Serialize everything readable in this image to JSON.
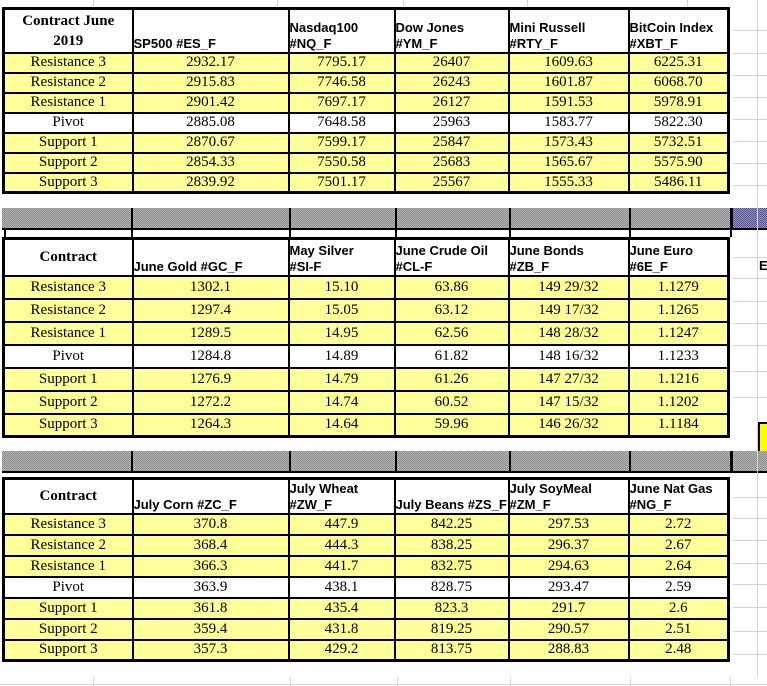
{
  "colors": {
    "cell_yellow": "#FFFF99",
    "pivot_row_white": "#FFFFFF",
    "border_black": "#000000",
    "separator_gray_dark": "#8a8a8a",
    "separator_gray_light": "#b6b6b6",
    "separator_purple_dark": "#55558f",
    "separator_purple_light": "#9191c2",
    "highlight_yellow": "#FFFF00",
    "gridline_gray": "#d6d6d6"
  },
  "edge_partial_text": "E",
  "sections": [
    {
      "corner": "Contract June\n2019",
      "columns": [
        "SP500 #ES_F",
        "Nasdaq100\n#NQ_F",
        "Dow Jones\n#YM_F",
        "Mini Russell\n#RTY_F",
        "BitCoin Index\n#XBT_F"
      ],
      "rows": [
        {
          "label": "Resistance 3",
          "values": [
            "2932.17",
            "7795.17",
            "26407",
            "1609.63",
            "6225.31"
          ]
        },
        {
          "label": "Resistance 2",
          "values": [
            "2915.83",
            "7746.58",
            "26243",
            "1601.87",
            "6068.70"
          ]
        },
        {
          "label": "Resistance 1",
          "values": [
            "2901.42",
            "7697.17",
            "26127",
            "1591.53",
            "5978.91"
          ]
        },
        {
          "label": "Pivot",
          "values": [
            "2885.08",
            "7648.58",
            "25963",
            "1583.77",
            "5822.30"
          ]
        },
        {
          "label": "Support 1",
          "values": [
            "2870.67",
            "7599.17",
            "25847",
            "1573.43",
            "5732.51"
          ]
        },
        {
          "label": "Support 2",
          "values": [
            "2854.33",
            "7550.58",
            "25683",
            "1565.67",
            "5575.90"
          ]
        },
        {
          "label": "Support 3",
          "values": [
            "2839.92",
            "7501.17",
            "25567",
            "1555.33",
            "5486.11"
          ]
        }
      ]
    },
    {
      "corner": "Contract",
      "columns": [
        "June Gold #GC_F",
        "May Silver\n#SI-F",
        "June Crude Oil\n#CL-F",
        "June Bonds\n#ZB_F",
        "June Euro #6E_F"
      ],
      "rows": [
        {
          "label": "Resistance 3",
          "values": [
            "1302.1",
            "15.10",
            "63.86",
            "149 29/32",
            "1.1279"
          ]
        },
        {
          "label": "Resistance 2",
          "values": [
            "1297.4",
            "15.05",
            "63.12",
            "149 17/32",
            "1.1265"
          ]
        },
        {
          "label": "Resistance 1",
          "values": [
            "1289.5",
            "14.95",
            "62.56",
            "148 28/32",
            "1.1247"
          ]
        },
        {
          "label": "Pivot",
          "values": [
            "1284.8",
            "14.89",
            "61.82",
            "148 16/32",
            "1.1233"
          ]
        },
        {
          "label": "Support 1",
          "values": [
            "1276.9",
            "14.79",
            "61.26",
            "147 27/32",
            "1.1216"
          ]
        },
        {
          "label": "Support 2",
          "values": [
            "1272.2",
            "14.74",
            "60.52",
            "147 15/32",
            "1.1202"
          ]
        },
        {
          "label": "Support 3",
          "values": [
            "1264.3",
            "14.64",
            "59.96",
            "146 26/32",
            "1.1184"
          ]
        }
      ]
    },
    {
      "corner": "Contract",
      "columns": [
        "July  Corn #ZC_F",
        "July Wheat\n#ZW_F",
        "July Beans #ZS_F",
        "July SoyMeal\n#ZM_F",
        "June Nat Gas\n#NG_F"
      ],
      "rows": [
        {
          "label": "Resistance 3",
          "values": [
            "370.8",
            "447.9",
            "842.25",
            "297.53",
            "2.72"
          ]
        },
        {
          "label": "Resistance 2",
          "values": [
            "368.4",
            "444.3",
            "838.25",
            "296.37",
            "2.67"
          ]
        },
        {
          "label": "Resistance 1",
          "values": [
            "366.3",
            "441.7",
            "832.75",
            "294.63",
            "2.64"
          ]
        },
        {
          "label": "Pivot",
          "values": [
            "363.9",
            "438.1",
            "828.75",
            "293.47",
            "2.59"
          ]
        },
        {
          "label": "Support 1",
          "values": [
            "361.8",
            "435.4",
            "823.3",
            "291.7",
            "2.6"
          ]
        },
        {
          "label": "Support 2",
          "values": [
            "359.4",
            "431.8",
            "819.25",
            "290.57",
            "2.51"
          ]
        },
        {
          "label": "Support 3",
          "values": [
            "357.3",
            "429.2",
            "813.75",
            "288.83",
            "2.48"
          ]
        }
      ]
    }
  ]
}
